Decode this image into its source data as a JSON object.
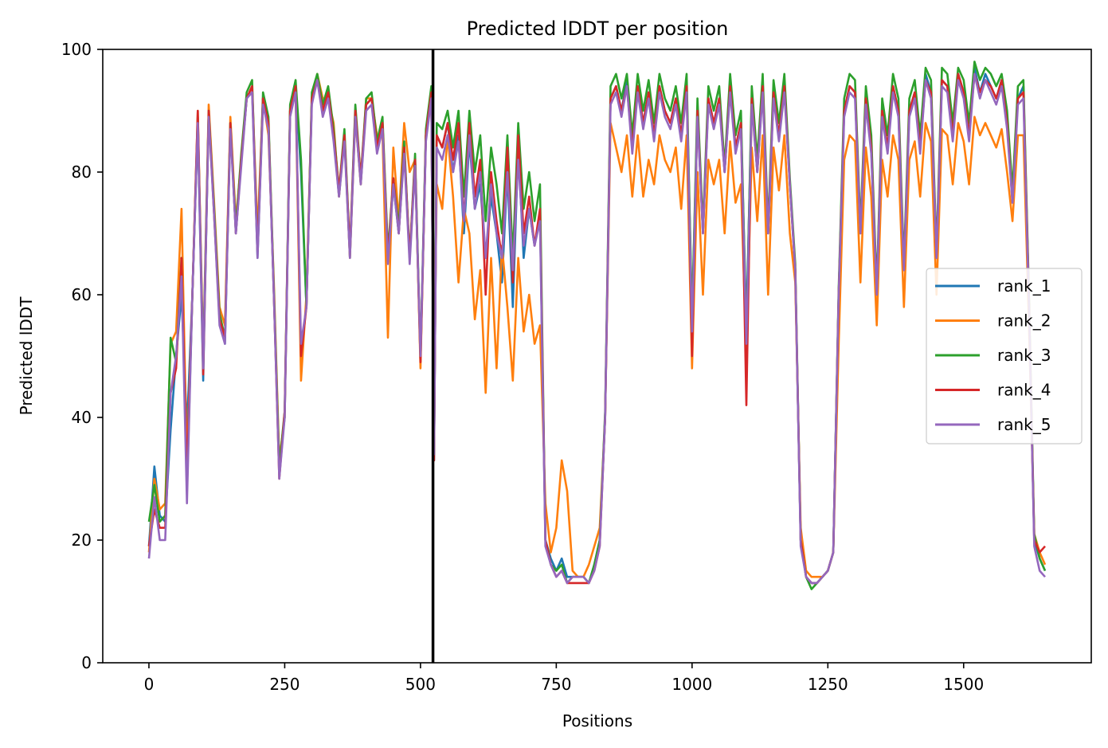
{
  "chart_data": {
    "type": "line",
    "title": "Predicted lDDT per position",
    "xlabel": "Positions",
    "ylabel": "Predicted lDDT",
    "xlim": [
      -85,
      1735
    ],
    "ylim": [
      0,
      100
    ],
    "xticks": [
      0,
      250,
      500,
      750,
      1000,
      1250,
      1500
    ],
    "yticks": [
      0,
      20,
      40,
      60,
      80,
      100
    ],
    "grid": false,
    "legend_position": "center-right",
    "chain_break_x": 523,
    "chain_break_color": "#000000",
    "x": [
      0,
      10,
      20,
      30,
      40,
      50,
      60,
      70,
      80,
      90,
      100,
      110,
      120,
      130,
      140,
      150,
      160,
      170,
      180,
      190,
      200,
      210,
      220,
      230,
      240,
      250,
      260,
      270,
      280,
      290,
      300,
      310,
      320,
      330,
      340,
      350,
      360,
      370,
      380,
      390,
      400,
      410,
      420,
      430,
      440,
      450,
      460,
      470,
      480,
      490,
      500,
      510,
      520,
      525,
      530,
      540,
      550,
      560,
      570,
      580,
      590,
      600,
      610,
      620,
      630,
      640,
      650,
      660,
      670,
      680,
      690,
      700,
      710,
      720,
      730,
      740,
      750,
      760,
      770,
      780,
      790,
      800,
      810,
      820,
      830,
      840,
      850,
      860,
      870,
      880,
      890,
      900,
      910,
      920,
      930,
      940,
      950,
      960,
      970,
      980,
      990,
      1000,
      1010,
      1020,
      1030,
      1040,
      1050,
      1060,
      1070,
      1080,
      1090,
      1100,
      1110,
      1120,
      1130,
      1140,
      1150,
      1160,
      1170,
      1180,
      1190,
      1200,
      1210,
      1220,
      1230,
      1240,
      1250,
      1260,
      1270,
      1280,
      1290,
      1300,
      1310,
      1320,
      1330,
      1340,
      1350,
      1360,
      1370,
      1380,
      1390,
      1400,
      1410,
      1420,
      1430,
      1440,
      1450,
      1460,
      1470,
      1480,
      1490,
      1500,
      1510,
      1520,
      1530,
      1540,
      1550,
      1560,
      1570,
      1580,
      1590,
      1600,
      1610,
      1620,
      1630,
      1640,
      1650
    ],
    "series": [
      {
        "name": "rank_1",
        "color": "#1f77b4",
        "values": [
          19,
          32,
          24,
          23,
          38,
          50,
          60,
          38,
          60,
          88,
          46,
          90,
          74,
          56,
          52,
          88,
          70,
          82,
          92,
          94,
          66,
          92,
          88,
          60,
          32,
          40,
          90,
          94,
          80,
          58,
          92,
          95,
          90,
          93,
          86,
          76,
          86,
          66,
          90,
          78,
          91,
          92,
          84,
          88,
          66,
          78,
          70,
          84,
          66,
          82,
          49,
          86,
          93,
          33,
          86,
          84,
          88,
          80,
          86,
          70,
          85,
          74,
          78,
          66,
          76,
          70,
          62,
          80,
          58,
          84,
          66,
          74,
          68,
          73,
          20,
          17,
          15,
          17,
          14,
          14,
          14,
          14,
          13,
          16,
          20,
          40,
          92,
          94,
          90,
          95,
          84,
          94,
          88,
          93,
          86,
          94,
          90,
          88,
          92,
          86,
          94,
          56,
          90,
          70,
          92,
          88,
          92,
          80,
          94,
          84,
          88,
          55,
          92,
          80,
          94,
          70,
          93,
          86,
          94,
          78,
          64,
          20,
          14,
          13,
          13,
          14,
          15,
          18,
          60,
          90,
          94,
          93,
          70,
          92,
          84,
          60,
          90,
          84,
          94,
          90,
          64,
          90,
          93,
          84,
          96,
          93,
          66,
          95,
          94,
          86,
          96,
          93,
          86,
          97,
          93,
          96,
          94,
          92,
          95,
          88,
          76,
          92,
          94,
          60,
          20,
          17,
          15
        ]
      },
      {
        "name": "rank_2",
        "color": "#ff7f0e",
        "values": [
          18,
          30,
          25,
          26,
          52,
          54,
          74,
          32,
          60,
          90,
          50,
          91,
          75,
          58,
          55,
          89,
          72,
          82,
          92,
          94,
          70,
          92,
          86,
          62,
          33,
          40,
          90,
          93,
          46,
          60,
          92,
          96,
          92,
          92,
          88,
          76,
          86,
          66,
          89,
          78,
          92,
          92,
          86,
          86,
          53,
          84,
          72,
          88,
          80,
          82,
          48,
          86,
          92,
          46,
          78,
          74,
          86,
          76,
          62,
          74,
          70,
          56,
          64,
          44,
          66,
          48,
          68,
          58,
          46,
          66,
          54,
          60,
          52,
          55,
          26,
          18,
          22,
          33,
          28,
          15,
          14,
          14,
          16,
          19,
          22,
          40,
          88,
          84,
          80,
          86,
          76,
          86,
          76,
          82,
          78,
          86,
          82,
          80,
          84,
          74,
          86,
          48,
          80,
          60,
          82,
          78,
          82,
          70,
          85,
          75,
          78,
          50,
          84,
          72,
          86,
          60,
          84,
          77,
          86,
          70,
          62,
          22,
          15,
          14,
          14,
          14,
          15,
          18,
          52,
          82,
          86,
          85,
          62,
          84,
          76,
          55,
          82,
          76,
          86,
          82,
          58,
          82,
          85,
          76,
          88,
          85,
          60,
          87,
          86,
          78,
          88,
          85,
          78,
          89,
          86,
          88,
          86,
          84,
          87,
          80,
          72,
          86,
          86,
          56,
          21,
          18,
          16
        ]
      },
      {
        "name": "rank_3",
        "color": "#2ca02c",
        "values": [
          23,
          29,
          23,
          24,
          53,
          49,
          66,
          28,
          60,
          89,
          49,
          90,
          74,
          57,
          53,
          88,
          71,
          83,
          93,
          95,
          67,
          93,
          89,
          61,
          32,
          41,
          91,
          95,
          82,
          58,
          93,
          96,
          91,
          94,
          87,
          77,
          87,
          67,
          91,
          79,
          92,
          93,
          85,
          89,
          67,
          79,
          71,
          85,
          66,
          83,
          50,
          87,
          94,
          34,
          88,
          87,
          90,
          84,
          90,
          76,
          90,
          80,
          86,
          72,
          84,
          78,
          70,
          86,
          66,
          88,
          74,
          80,
          72,
          78,
          20,
          16,
          15,
          16,
          13,
          14,
          14,
          14,
          13,
          16,
          20,
          41,
          94,
          96,
          92,
          96,
          86,
          96,
          90,
          95,
          88,
          96,
          92,
          90,
          94,
          88,
          96,
          56,
          92,
          71,
          94,
          90,
          94,
          81,
          96,
          86,
          90,
          53,
          94,
          82,
          96,
          71,
          95,
          88,
          96,
          79,
          65,
          20,
          14,
          12,
          13,
          14,
          15,
          18,
          61,
          92,
          96,
          95,
          71,
          94,
          86,
          61,
          92,
          86,
          96,
          92,
          65,
          92,
          95,
          86,
          97,
          95,
          67,
          97,
          96,
          88,
          97,
          95,
          88,
          98,
          95,
          97,
          96,
          94,
          96,
          90,
          77,
          94,
          95,
          61,
          21,
          17,
          15
        ]
      },
      {
        "name": "rank_4",
        "color": "#d62728",
        "values": [
          19,
          25,
          22,
          22,
          44,
          48,
          66,
          30,
          60,
          90,
          47,
          90,
          73,
          56,
          53,
          88,
          70,
          82,
          92,
          94,
          67,
          92,
          88,
          60,
          30,
          41,
          90,
          94,
          50,
          58,
          92,
          95,
          90,
          93,
          86,
          77,
          86,
          67,
          90,
          79,
          91,
          92,
          84,
          88,
          66,
          79,
          70,
          84,
          66,
          82,
          49,
          86,
          93,
          33,
          86,
          84,
          88,
          82,
          88,
          72,
          88,
          76,
          82,
          60,
          80,
          72,
          66,
          84,
          62,
          86,
          70,
          76,
          68,
          74,
          20,
          16,
          14,
          15,
          13,
          13,
          13,
          13,
          13,
          15,
          19,
          40,
          92,
          94,
          90,
          94,
          84,
          94,
          88,
          93,
          86,
          94,
          90,
          88,
          92,
          86,
          94,
          50,
          90,
          70,
          92,
          88,
          92,
          80,
          94,
          84,
          88,
          42,
          92,
          80,
          94,
          70,
          93,
          86,
          94,
          78,
          64,
          20,
          14,
          13,
          13,
          14,
          15,
          18,
          60,
          90,
          94,
          93,
          70,
          92,
          84,
          60,
          90,
          84,
          94,
          90,
          64,
          90,
          93,
          84,
          95,
          93,
          66,
          95,
          94,
          86,
          96,
          93,
          86,
          96,
          93,
          95,
          94,
          92,
          95,
          88,
          75,
          92,
          93,
          60,
          20,
          18,
          19
        ]
      },
      {
        "name": "rank_5",
        "color": "#9467bd",
        "values": [
          17,
          27,
          20,
          20,
          44,
          50,
          63,
          26,
          60,
          88,
          48,
          89,
          73,
          55,
          52,
          87,
          70,
          81,
          92,
          93,
          66,
          91,
          87,
          60,
          30,
          40,
          89,
          93,
          52,
          58,
          91,
          95,
          89,
          92,
          85,
          76,
          85,
          66,
          89,
          78,
          90,
          91,
          83,
          87,
          65,
          78,
          70,
          83,
          65,
          81,
          50,
          85,
          92,
          34,
          84,
          82,
          86,
          80,
          85,
          72,
          86,
          74,
          80,
          66,
          78,
          70,
          66,
          80,
          64,
          82,
          68,
          74,
          68,
          72,
          19,
          16,
          14,
          15,
          13,
          14,
          14,
          14,
          13,
          15,
          19,
          40,
          91,
          93,
          89,
          94,
          83,
          93,
          87,
          92,
          85,
          93,
          89,
          87,
          91,
          85,
          93,
          54,
          89,
          70,
          91,
          87,
          91,
          80,
          93,
          83,
          87,
          52,
          91,
          80,
          93,
          70,
          92,
          85,
          93,
          78,
          64,
          19,
          14,
          13,
          13,
          14,
          15,
          18,
          60,
          89,
          93,
          92,
          70,
          91,
          83,
          60,
          89,
          83,
          93,
          89,
          64,
          89,
          92,
          83,
          95,
          92,
          66,
          94,
          93,
          85,
          95,
          92,
          85,
          96,
          92,
          95,
          93,
          91,
          94,
          87,
          75,
          91,
          92,
          59,
          19,
          15,
          14
        ]
      }
    ]
  }
}
